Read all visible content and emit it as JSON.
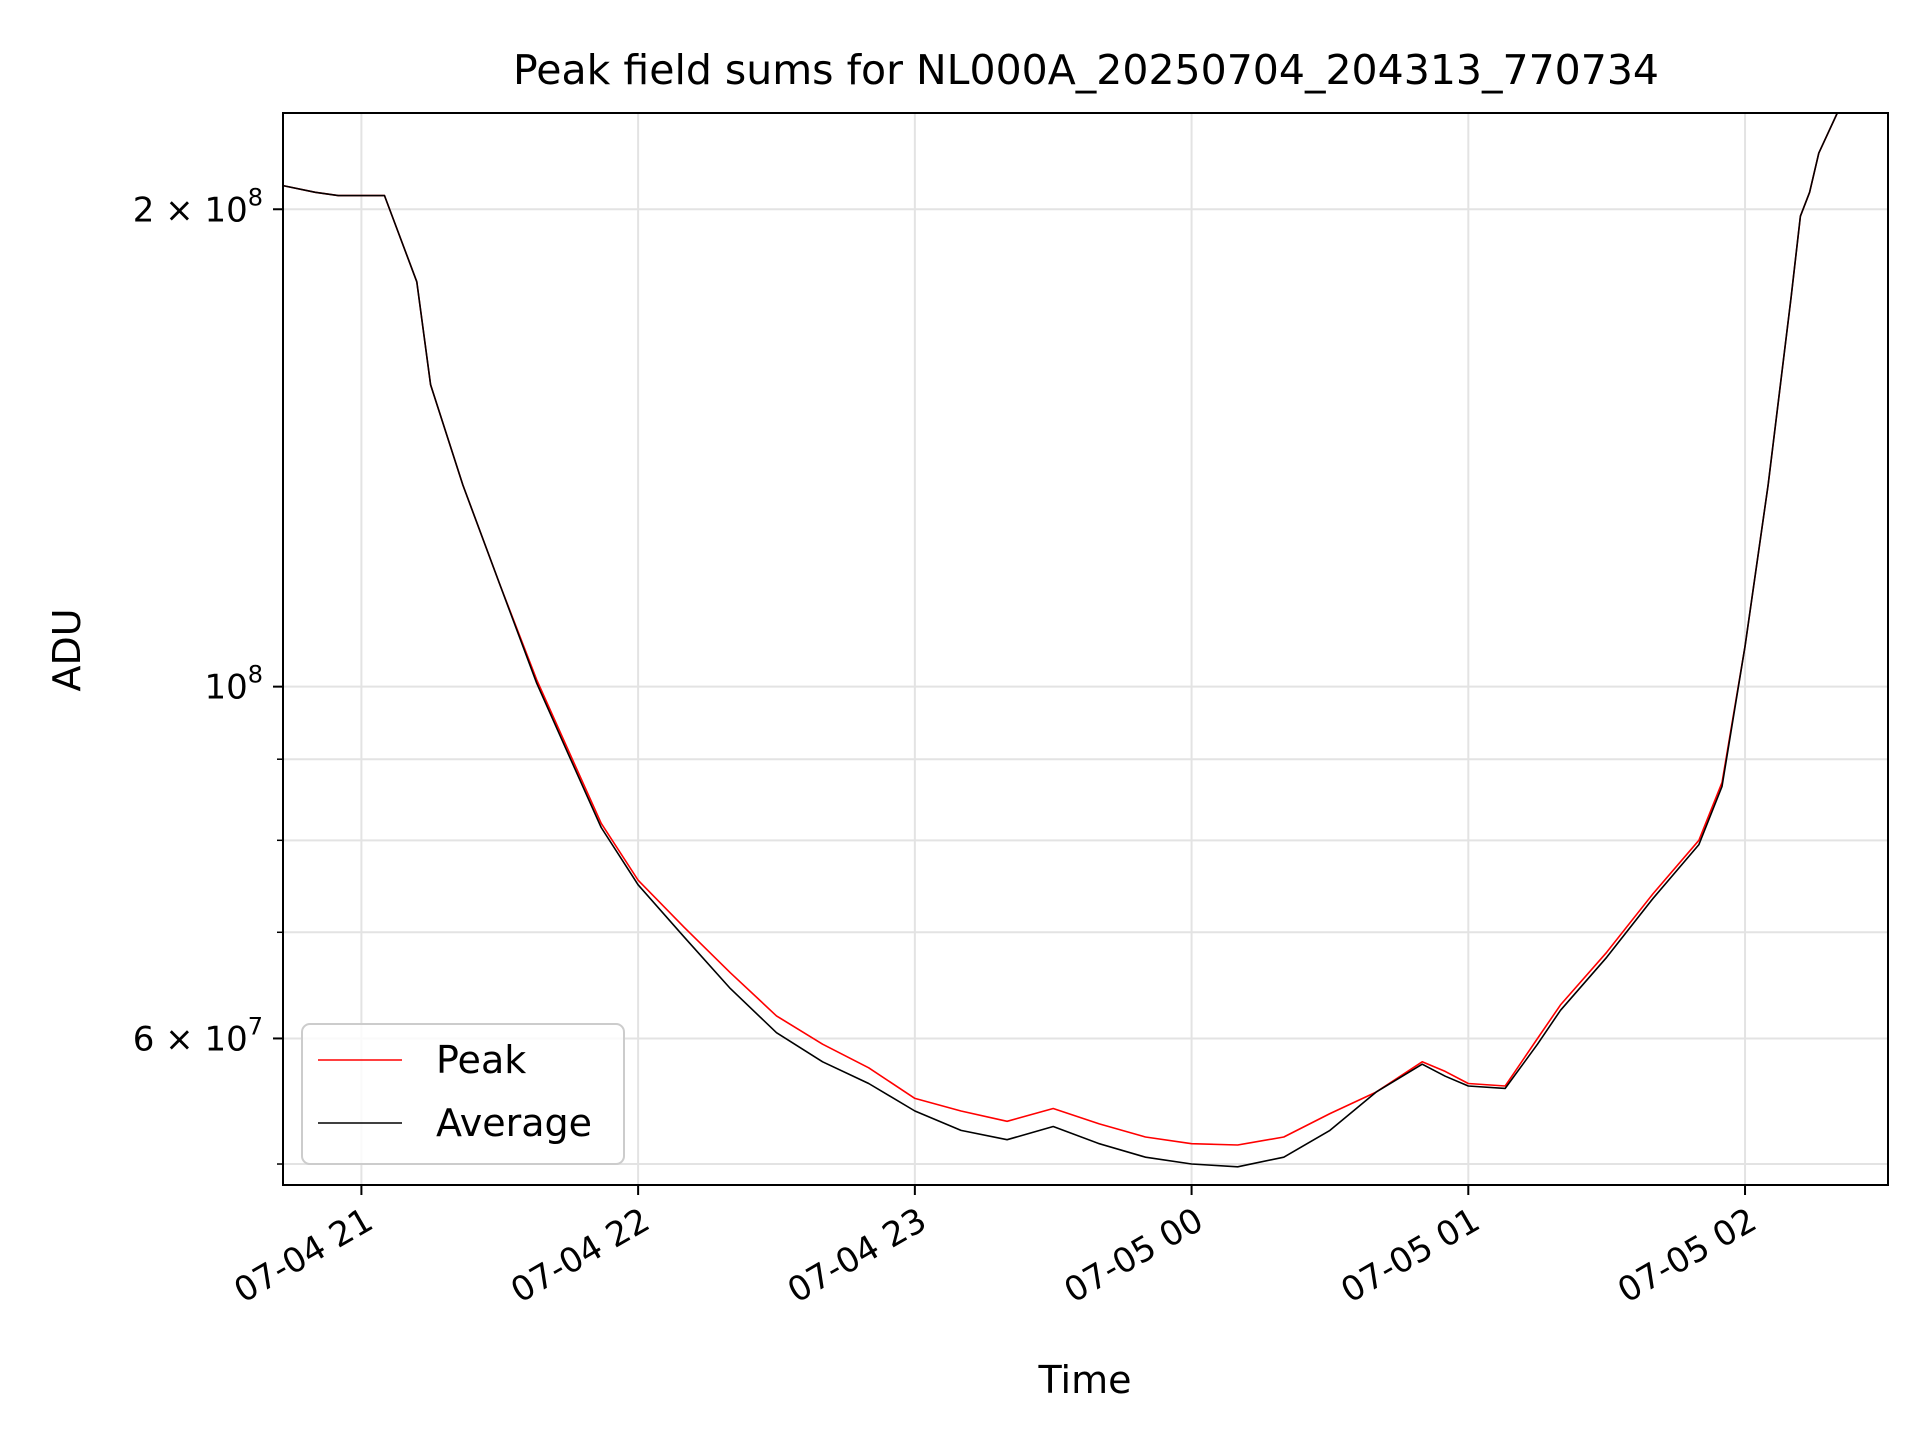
{
  "chart_data": {
    "type": "line",
    "title": "Peak field sums for NL000A_20250704_204313_770734",
    "xlabel": "Time",
    "ylabel": "ADU",
    "y_scale": "log",
    "xlim": [
      "2025-07-04 20:43",
      "2025-07-05 02:31"
    ],
    "ylim": [
      48500000,
      230000000
    ],
    "grid": true,
    "legend_position": "lower-left",
    "x_ticks": [
      {
        "t": "2025-07-04 21:00",
        "label": "07-04 21"
      },
      {
        "t": "2025-07-04 22:00",
        "label": "07-04 22"
      },
      {
        "t": "2025-07-04 23:00",
        "label": "07-04 23"
      },
      {
        "t": "2025-07-05 00:00",
        "label": "07-05 00"
      },
      {
        "t": "2025-07-05 01:00",
        "label": "07-05 01"
      },
      {
        "t": "2025-07-05 02:00",
        "label": "07-05 02"
      }
    ],
    "y_ticks": [
      {
        "value": 200000000,
        "mant": "2",
        "times": "×",
        "base": "10",
        "exp": "8"
      },
      {
        "value": 100000000,
        "mant": "",
        "times": "",
        "base": "10",
        "exp": "8"
      },
      {
        "value": 60000000,
        "mant": "6",
        "times": "×",
        "base": "10",
        "exp": "7"
      }
    ],
    "y_minor_ticks": [
      50000000,
      70000000,
      80000000,
      90000000
    ],
    "series": [
      {
        "name": "Peak",
        "color": "#ff0000",
        "points": [
          [
            "2025-07-04 20:43",
            207000000
          ],
          [
            "2025-07-04 20:50",
            205000000
          ],
          [
            "2025-07-04 20:55",
            204000000
          ],
          [
            "2025-07-04 21:05",
            204000000
          ],
          [
            "2025-07-04 21:12",
            180000000
          ],
          [
            "2025-07-04 21:15",
            155000000
          ],
          [
            "2025-07-04 21:22",
            134000000
          ],
          [
            "2025-07-04 21:30",
            116000000
          ],
          [
            "2025-07-04 21:38",
            101000000
          ],
          [
            "2025-07-04 21:45",
            91000000
          ],
          [
            "2025-07-04 21:52",
            82000000
          ],
          [
            "2025-07-04 22:00",
            75500000
          ],
          [
            "2025-07-04 22:10",
            70500000
          ],
          [
            "2025-07-04 22:20",
            66000000
          ],
          [
            "2025-07-04 22:30",
            62000000
          ],
          [
            "2025-07-04 22:40",
            59500000
          ],
          [
            "2025-07-04 22:50",
            57500000
          ],
          [
            "2025-07-04 23:00",
            55000000
          ],
          [
            "2025-07-04 23:10",
            54000000
          ],
          [
            "2025-07-04 23:20",
            53200000
          ],
          [
            "2025-07-04 23:30",
            54200000
          ],
          [
            "2025-07-04 23:40",
            53000000
          ],
          [
            "2025-07-04 23:50",
            52000000
          ],
          [
            "2025-07-05 00:00",
            51500000
          ],
          [
            "2025-07-05 00:10",
            51400000
          ],
          [
            "2025-07-05 00:20",
            52000000
          ],
          [
            "2025-07-05 00:30",
            53800000
          ],
          [
            "2025-07-05 00:40",
            55500000
          ],
          [
            "2025-07-05 00:50",
            58000000
          ],
          [
            "2025-07-05 00:55",
            57200000
          ],
          [
            "2025-07-05 01:00",
            56200000
          ],
          [
            "2025-07-05 01:08",
            56000000
          ],
          [
            "2025-07-05 01:15",
            60000000
          ],
          [
            "2025-07-05 01:20",
            63000000
          ],
          [
            "2025-07-05 01:30",
            68000000
          ],
          [
            "2025-07-05 01:40",
            74000000
          ],
          [
            "2025-07-05 01:50",
            80000000
          ],
          [
            "2025-07-05 01:55",
            87000000
          ],
          [
            "2025-07-05 02:00",
            106000000
          ],
          [
            "2025-07-05 02:05",
            134000000
          ],
          [
            "2025-07-05 02:10",
            176000000
          ],
          [
            "2025-07-05 02:12",
            198000000
          ],
          [
            "2025-07-05 02:14",
            205000000
          ],
          [
            "2025-07-05 02:16",
            217000000
          ],
          [
            "2025-07-05 02:20",
            230000000
          ],
          [
            "2025-07-05 02:31",
            230000000
          ]
        ]
      },
      {
        "name": "Average",
        "color": "#000000",
        "points": [
          [
            "2025-07-04 20:43",
            207000000
          ],
          [
            "2025-07-04 20:50",
            205000000
          ],
          [
            "2025-07-04 20:55",
            204000000
          ],
          [
            "2025-07-04 21:05",
            204000000
          ],
          [
            "2025-07-04 21:12",
            180000000
          ],
          [
            "2025-07-04 21:15",
            155000000
          ],
          [
            "2025-07-04 21:22",
            134000000
          ],
          [
            "2025-07-04 21:30",
            116000000
          ],
          [
            "2025-07-04 21:38",
            100500000
          ],
          [
            "2025-07-04 21:45",
            90500000
          ],
          [
            "2025-07-04 21:52",
            81500000
          ],
          [
            "2025-07-04 22:00",
            75000000
          ],
          [
            "2025-07-04 22:10",
            69500000
          ],
          [
            "2025-07-04 22:20",
            64500000
          ],
          [
            "2025-07-04 22:30",
            60500000
          ],
          [
            "2025-07-04 22:40",
            58000000
          ],
          [
            "2025-07-04 22:50",
            56200000
          ],
          [
            "2025-07-04 23:00",
            54000000
          ],
          [
            "2025-07-04 23:10",
            52500000
          ],
          [
            "2025-07-04 23:20",
            51800000
          ],
          [
            "2025-07-04 23:30",
            52800000
          ],
          [
            "2025-07-04 23:40",
            51500000
          ],
          [
            "2025-07-04 23:50",
            50500000
          ],
          [
            "2025-07-05 00:00",
            50000000
          ],
          [
            "2025-07-05 00:10",
            49800000
          ],
          [
            "2025-07-05 00:20",
            50500000
          ],
          [
            "2025-07-05 00:30",
            52500000
          ],
          [
            "2025-07-05 00:40",
            55500000
          ],
          [
            "2025-07-05 00:50",
            57800000
          ],
          [
            "2025-07-05 00:55",
            56800000
          ],
          [
            "2025-07-05 01:00",
            56000000
          ],
          [
            "2025-07-05 01:08",
            55800000
          ],
          [
            "2025-07-05 01:15",
            59500000
          ],
          [
            "2025-07-05 01:20",
            62500000
          ],
          [
            "2025-07-05 01:30",
            67500000
          ],
          [
            "2025-07-05 01:40",
            73500000
          ],
          [
            "2025-07-05 01:50",
            79500000
          ],
          [
            "2025-07-05 01:55",
            86500000
          ],
          [
            "2025-07-05 02:00",
            106000000
          ],
          [
            "2025-07-05 02:05",
            134000000
          ],
          [
            "2025-07-05 02:10",
            176000000
          ],
          [
            "2025-07-05 02:12",
            198000000
          ],
          [
            "2025-07-05 02:14",
            205000000
          ],
          [
            "2025-07-05 02:16",
            217000000
          ],
          [
            "2025-07-05 02:20",
            230000000
          ],
          [
            "2025-07-05 02:31",
            230000000
          ]
        ]
      }
    ]
  }
}
